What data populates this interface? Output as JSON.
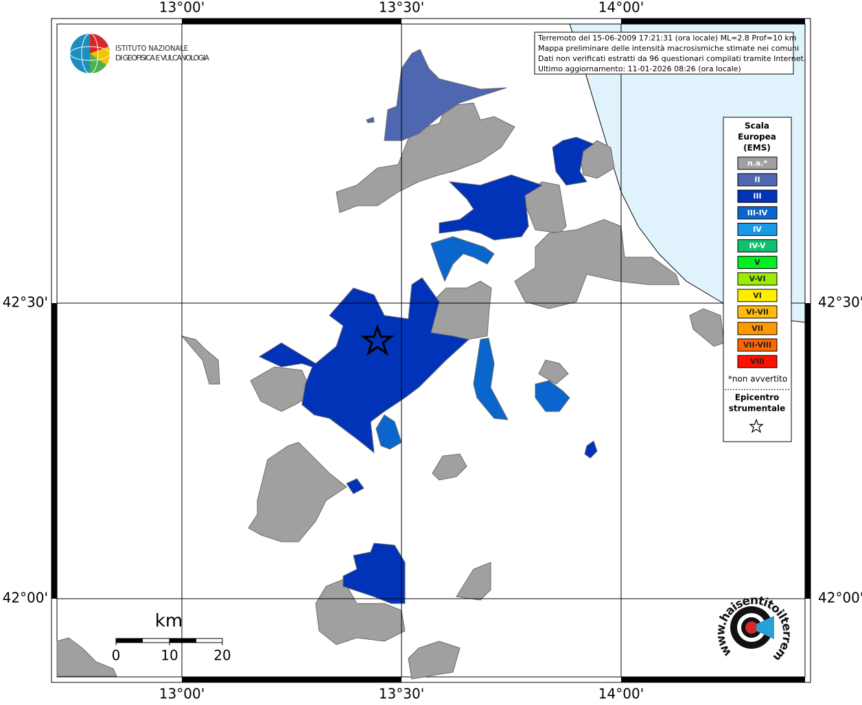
{
  "map": {
    "lon_labels": [
      "13°00'",
      "13°30'",
      "14°00'"
    ],
    "lat_labels": [
      "42°30'",
      "42°00'"
    ],
    "logo_ingv": [
      "ISTITUTO NAZIONALE",
      "DI GEOFISICA E VULCANOLOGIA"
    ],
    "info": [
      "Terremoto del 15-06-2009 17:21:31 (ora locale) ML=2.8 Prof=10 km",
      "Mappa preliminare delle intensità macrosismiche stimate nei comuni",
      "Dati non verificati estratti da 96 questionari compilati tramite Internet.",
      "Ultimo aggiornamento: 11-01-2026 08:26 (ora locale)"
    ],
    "legend": {
      "title": [
        "Scala",
        "Europea",
        "(EMS)"
      ],
      "items": [
        {
          "label": "n.a.*",
          "color": "#a0a0a0"
        },
        {
          "label": "II",
          "color": "#4f66b0"
        },
        {
          "label": "III",
          "color": "#0033b8"
        },
        {
          "label": "III-IV",
          "color": "#0a66cc"
        },
        {
          "label": "IV",
          "color": "#1a99e6"
        },
        {
          "label": "IV-V",
          "color": "#10c070"
        },
        {
          "label": "V",
          "color": "#00ee22"
        },
        {
          "label": "V-VI",
          "color": "#99ee00"
        },
        {
          "label": "VI",
          "color": "#ffee00"
        },
        {
          "label": "VI-VII",
          "color": "#ffbb11"
        },
        {
          "label": "VII",
          "color": "#ff9900"
        },
        {
          "label": "VII-VIII",
          "color": "#ff6600"
        },
        {
          "label": "VIII",
          "color": "#ff1100"
        }
      ],
      "note": "*non avvertito",
      "epicenter": [
        "Epicentro",
        "strumentale"
      ]
    },
    "scale": {
      "unit": "km",
      "labels": [
        "0",
        "10",
        "20"
      ]
    },
    "logo_hsit": "www.haisentitoilterremoto.it"
  }
}
